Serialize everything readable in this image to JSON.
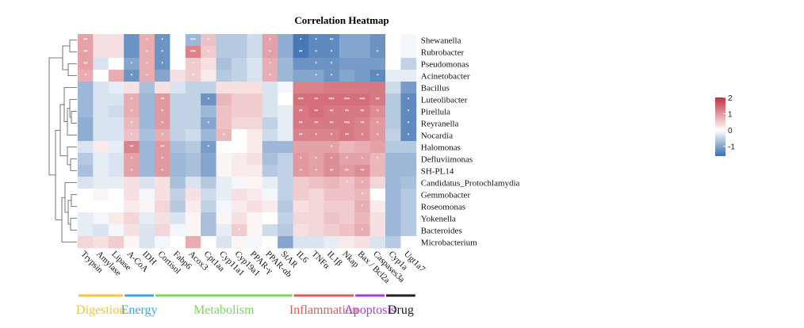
{
  "chart_data": {
    "type": "heatmap",
    "title": "Correlation Heatmap",
    "rows": [
      "Shewanella",
      "Rubrobacter",
      "Pseudomonas",
      "Acinetobacter",
      "Bacillus",
      "Luteolibacter",
      "Pirellula",
      "Reyranella",
      "Nocardia",
      "Halomonas",
      "Defluviimonas",
      "SH-PL14",
      "Candidatus_Protochlamydia",
      "Gemmobacter",
      "Roseomonas",
      "Yokenella",
      "Bacteroides",
      "Microbacterium"
    ],
    "columns": [
      "Trypsin",
      "Amylase",
      "Lipase",
      "A-CoA",
      "IDH",
      "Cortisol",
      "Fabp6",
      "Acox3",
      "Cpt1aa",
      "Cyp11a1",
      "Cyp19a1",
      "PPAR-γ",
      "PPAR-αb",
      "StAR",
      "IL6",
      "TNFα",
      "IL1β",
      "Nkap",
      "Bax / Bcl2a",
      "Caspases3a",
      "Cyp1a",
      "Ugt1a7"
    ],
    "groups": [
      {
        "name": "Digestion",
        "color": "#f2c53d",
        "start": 0,
        "end": 2
      },
      {
        "name": "Energy",
        "color": "#3aa8e0",
        "start": 3,
        "end": 4
      },
      {
        "name": "Metabolism",
        "color": "#7ed957",
        "start": 5,
        "end": 13
      },
      {
        "name": "Inflammation",
        "color": "#e05a5a",
        "start": 14,
        "end": 17
      },
      {
        "name": "Apoptosis",
        "color": "#a33fd6",
        "start": 18,
        "end": 19
      },
      {
        "name": "Drug",
        "color": "#222222",
        "start": 20,
        "end": 21
      }
    ],
    "values": [
      [
        0.9,
        0.3,
        0.3,
        -1.2,
        0.8,
        -1.2,
        0.0,
        -0.8,
        0.6,
        -0.6,
        -0.6,
        -0.4,
        0.9,
        -0.9,
        -1.5,
        -1.3,
        -1.3,
        -1.0,
        -1.0,
        -1.2,
        0.0,
        -0.1
      ],
      [
        0.9,
        0.3,
        0.3,
        -1.2,
        0.8,
        -1.2,
        0.0,
        1.2,
        0.5,
        -0.6,
        -0.6,
        -0.4,
        0.9,
        -0.9,
        -1.5,
        -1.3,
        -1.3,
        -1.0,
        -1.0,
        -1.2,
        0.0,
        -0.1
      ],
      [
        0.9,
        -0.3,
        0.0,
        -1.0,
        0.8,
        -1.2,
        0.0,
        0.5,
        0.3,
        -0.7,
        -0.5,
        -0.3,
        0.8,
        -0.8,
        -1.2,
        -1.2,
        -1.2,
        -1.1,
        -1.1,
        -1.1,
        0.0,
        -0.5
      ],
      [
        0.8,
        0.0,
        0.8,
        -1.2,
        0.8,
        -1.0,
        0.3,
        0.5,
        0.2,
        -0.6,
        -0.5,
        -0.3,
        0.8,
        -0.8,
        -1.0,
        -1.0,
        -1.2,
        -1.0,
        -1.1,
        -1.3,
        -0.2,
        -0.2
      ],
      [
        -0.8,
        -0.3,
        -0.2,
        0.3,
        -0.7,
        0.3,
        -0.3,
        -0.5,
        -0.5,
        0.3,
        0.3,
        0.3,
        -0.3,
        -0.1,
        1.2,
        1.2,
        1.3,
        1.3,
        1.3,
        1.3,
        -0.4,
        -1.1
      ],
      [
        -0.8,
        -0.3,
        -0.3,
        0.8,
        -0.8,
        1.0,
        -0.5,
        -0.5,
        -1.2,
        0.7,
        0.5,
        0.5,
        -0.3,
        0.0,
        1.4,
        1.4,
        1.4,
        1.4,
        1.4,
        1.3,
        -0.6,
        -1.3
      ],
      [
        -0.8,
        -0.3,
        -0.4,
        0.8,
        -0.8,
        1.0,
        -0.5,
        -0.5,
        -0.8,
        0.6,
        0.5,
        0.5,
        -0.3,
        -0.2,
        1.3,
        1.4,
        1.3,
        1.3,
        1.3,
        1.1,
        -0.6,
        -1.3
      ],
      [
        -0.9,
        -0.3,
        -0.3,
        0.7,
        -0.8,
        1.0,
        -0.5,
        -0.5,
        -1.0,
        0.6,
        0.4,
        0.4,
        -0.5,
        -0.2,
        1.3,
        1.3,
        1.3,
        1.3,
        1.2,
        1.0,
        -0.6,
        -1.3
      ],
      [
        -0.9,
        -0.3,
        -0.3,
        0.6,
        -0.7,
        0.8,
        -0.5,
        -0.4,
        -0.8,
        0.7,
        0.0,
        0.2,
        -0.4,
        -0.2,
        1.2,
        1.2,
        1.2,
        1.3,
        1.2,
        1.0,
        -0.5,
        -1.3
      ],
      [
        -0.3,
        0.2,
        -0.2,
        1.2,
        -0.8,
        1.0,
        -0.7,
        -0.6,
        -1.1,
        0.0,
        0.0,
        0.2,
        -0.8,
        -0.8,
        0.9,
        0.9,
        0.9,
        0.7,
        0.8,
        0.9,
        -0.6,
        -0.6
      ],
      [
        -0.6,
        -0.2,
        -0.3,
        0.9,
        -0.8,
        1.0,
        -0.8,
        -0.7,
        -1.0,
        0.1,
        0.2,
        0.3,
        -0.7,
        -0.5,
        1.0,
        0.9,
        1.1,
        0.9,
        0.9,
        0.7,
        -0.8,
        -0.8
      ],
      [
        -0.7,
        -0.2,
        -0.3,
        0.9,
        -0.8,
        1.0,
        -0.8,
        -0.7,
        -1.0,
        0.1,
        0.2,
        0.2,
        -0.6,
        -0.5,
        1.0,
        0.9,
        1.1,
        1.0,
        1.1,
        0.7,
        -0.8,
        -0.8
      ],
      [
        -0.3,
        -0.2,
        -0.2,
        0.3,
        -0.3,
        0.3,
        -0.7,
        -0.3,
        -0.6,
        -0.2,
        -0.1,
        0.1,
        -0.2,
        -0.5,
        0.5,
        0.6,
        0.7,
        0.6,
        0.8,
        0.4,
        -0.8,
        -0.7
      ],
      [
        0.0,
        0.1,
        0.0,
        0.3,
        -0.1,
        0.3,
        -0.5,
        0.3,
        -0.4,
        -0.2,
        0.3,
        0.2,
        -0.1,
        -0.5,
        0.5,
        0.4,
        0.6,
        0.6,
        0.7,
        0.0,
        -0.8,
        -0.6
      ],
      [
        0.0,
        0.0,
        0.0,
        0.2,
        0.1,
        0.4,
        -0.6,
        0.2,
        -0.5,
        -0.1,
        0.2,
        0.3,
        0.2,
        -0.6,
        0.3,
        0.4,
        0.5,
        0.5,
        0.8,
        0.2,
        -0.8,
        -0.6
      ],
      [
        -0.2,
        -0.1,
        0.2,
        0.4,
        -0.2,
        0.3,
        -0.3,
        0.1,
        -0.7,
        0.1,
        0.3,
        0.1,
        0.0,
        -0.5,
        0.4,
        0.4,
        0.6,
        0.5,
        0.7,
        0.3,
        -0.8,
        -0.6
      ],
      [
        -0.2,
        -0.3,
        -0.1,
        0.3,
        -0.3,
        0.4,
        -0.1,
        0.1,
        -0.7,
        -0.2,
        0.5,
        0.1,
        -0.4,
        -0.6,
        0.3,
        0.4,
        0.5,
        0.6,
        0.8,
        0.3,
        -0.8,
        -0.6
      ],
      [
        0.4,
        0.3,
        0.5,
        0.1,
        -0.3,
        -0.1,
        0.0,
        0.8,
        0.0,
        -0.3,
        0.1,
        -0.1,
        0.0,
        -1.0,
        -0.3,
        -0.3,
        -0.2,
        0.2,
        0.3,
        -0.3,
        -0.6,
        0.0
      ]
    ],
    "significance": [
      [
        "**",
        "",
        "",
        "",
        "*",
        "*",
        "",
        "***",
        "*",
        "",
        "",
        "",
        "*",
        "",
        "*",
        "*",
        "**",
        "",
        "",
        "",
        "",
        ""
      ],
      [
        "**",
        "",
        "",
        "",
        "*",
        "*",
        "",
        "***",
        "*",
        "",
        "",
        "",
        "*",
        "",
        "**",
        "*",
        "*",
        "",
        "",
        "*",
        "",
        ""
      ],
      [
        "**",
        "",
        "",
        "*",
        "*",
        "*",
        "",
        "*",
        "",
        "",
        "",
        "",
        "*",
        "",
        "",
        "*",
        "*",
        "",
        "",
        "",
        "",
        ""
      ],
      [
        "*",
        "",
        "",
        "*",
        "*",
        "",
        "",
        "*",
        "",
        "",
        "",
        "",
        "*",
        "",
        "",
        "*",
        "*",
        "",
        "",
        "*",
        "",
        ""
      ],
      [
        "",
        "",
        "",
        "",
        "",
        "",
        "",
        "",
        "",
        "",
        "",
        "",
        "",
        "",
        "",
        "",
        "",
        "",
        "",
        "",
        "",
        ""
      ],
      [
        "",
        "",
        "",
        "*",
        "",
        "**",
        "",
        "",
        "*",
        "",
        "",
        "",
        "",
        "",
        "***",
        "**",
        "***",
        "***",
        "***",
        "**",
        "",
        "*"
      ],
      [
        "",
        "",
        "",
        "*",
        "",
        "*",
        "",
        "",
        "",
        "",
        "",
        "",
        "",
        "",
        "**",
        "**",
        "**",
        "**",
        "**",
        "*",
        "",
        "*"
      ],
      [
        "",
        "",
        "",
        "*",
        "",
        "*",
        "",
        "",
        "*",
        "",
        "",
        "",
        "",
        "",
        "**",
        "**",
        "**",
        "***",
        "**",
        "*",
        "",
        "*"
      ],
      [
        "",
        "",
        "",
        "*",
        "",
        "*",
        "",
        "",
        "",
        "*",
        "",
        "",
        "",
        "",
        "**",
        "*",
        "*",
        "**",
        "*",
        "*",
        "",
        "*"
      ],
      [
        "",
        "",
        "",
        "**",
        "",
        "**",
        "",
        "",
        "*",
        "",
        "",
        "",
        "",
        "",
        "",
        "",
        "*",
        "",
        "",
        "",
        "",
        ""
      ],
      [
        "",
        "",
        "",
        "*",
        "",
        "*",
        "",
        "",
        "",
        "",
        "",
        "",
        "",
        "",
        "*",
        "*",
        "*",
        "*",
        "*",
        "*",
        "",
        ""
      ],
      [
        "",
        "",
        "",
        "*",
        "",
        "*",
        "",
        "",
        "",
        "",
        "",
        "",
        "",
        "",
        "*",
        "*",
        "**",
        "**",
        "**",
        "",
        "",
        ""
      ],
      [
        "",
        "",
        "",
        "",
        "",
        "",
        "",
        "",
        "",
        "",
        "",
        "",
        "",
        "",
        "",
        "",
        "",
        "*",
        "*",
        "",
        "",
        ""
      ],
      [
        "",
        "",
        "",
        "",
        "",
        "",
        "",
        "",
        "",
        "",
        "",
        "",
        "",
        "",
        "",
        "",
        "",
        "",
        "*",
        "",
        "",
        ""
      ],
      [
        "",
        "",
        "",
        "",
        "",
        "",
        "",
        "",
        "",
        "",
        "",
        "",
        "",
        "",
        "",
        "",
        "",
        "",
        "*",
        "",
        "",
        ""
      ],
      [
        "",
        "",
        "",
        "",
        "",
        "",
        "",
        "",
        "",
        "",
        "",
        "",
        "",
        "",
        "",
        "",
        "",
        "",
        "",
        "",
        "",
        ""
      ],
      [
        "",
        "",
        "",
        "",
        "",
        "",
        "",
        "",
        "",
        "",
        "*",
        "",
        "",
        "",
        "",
        "",
        "",
        "",
        "*",
        "",
        "",
        ""
      ],
      [
        "",
        "",
        "",
        "",
        "",
        "",
        "",
        "",
        "",
        "",
        "",
        "",
        "",
        "",
        "",
        "",
        "",
        "",
        "",
        "",
        "",
        ""
      ]
    ],
    "legend": {
      "ticks": [
        2,
        1,
        0,
        -1
      ],
      "range": [
        -1.6,
        2.0
      ],
      "colors": [
        "#3a6fb0",
        "#ffffff",
        "#c2313e"
      ]
    },
    "dendrogram": "row"
  }
}
